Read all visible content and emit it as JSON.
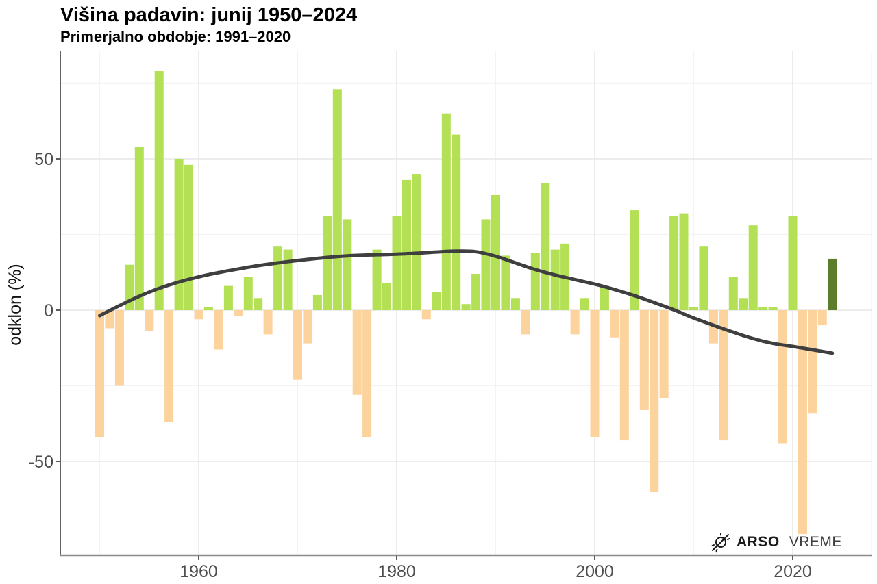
{
  "chart_data": {
    "type": "bar",
    "title": "Višina padavin: junij 1950–2024",
    "subtitle": "Primerjalno obdobje: 1991–2020",
    "xlabel": "",
    "ylabel": "odklon (%)",
    "ylim": [
      -80,
      85
    ],
    "yticks": [
      50,
      0,
      -50
    ],
    "yminor": [
      75,
      25,
      -25,
      -75
    ],
    "xticks": [
      1960,
      1980,
      2000,
      2020
    ],
    "xminor": [
      1950,
      1970,
      1990,
      2010
    ],
    "grid": true,
    "legend": "none",
    "highlight_year": 2024,
    "years": [
      1950,
      1951,
      1952,
      1953,
      1954,
      1955,
      1956,
      1957,
      1958,
      1959,
      1960,
      1961,
      1962,
      1963,
      1964,
      1965,
      1966,
      1967,
      1968,
      1969,
      1970,
      1971,
      1972,
      1973,
      1974,
      1975,
      1976,
      1977,
      1978,
      1979,
      1980,
      1981,
      1982,
      1983,
      1984,
      1985,
      1986,
      1987,
      1988,
      1989,
      1990,
      1991,
      1992,
      1993,
      1994,
      1995,
      1996,
      1997,
      1998,
      1999,
      2000,
      2001,
      2002,
      2003,
      2004,
      2005,
      2006,
      2007,
      2008,
      2009,
      2010,
      2011,
      2012,
      2013,
      2014,
      2015,
      2016,
      2017,
      2018,
      2019,
      2020,
      2021,
      2022,
      2023,
      2024
    ],
    "values": [
      -42,
      -6,
      -25,
      15,
      54,
      -7,
      79,
      -37,
      50,
      48,
      -3,
      1,
      -13,
      8,
      -2,
      11,
      4,
      -8,
      21,
      20,
      -23,
      -11,
      5,
      31,
      73,
      30,
      -28,
      -42,
      20,
      9,
      31,
      43,
      45,
      -3,
      6,
      65,
      58,
      2,
      12,
      30,
      38,
      18,
      4,
      -8,
      19,
      42,
      20,
      22,
      -8,
      4,
      -42,
      8,
      -9,
      -43,
      33,
      -33,
      -60,
      -29,
      31,
      32,
      1,
      21,
      -11,
      -43,
      11,
      4,
      28,
      1,
      1,
      -44,
      31,
      -74,
      -34,
      -5,
      17
    ],
    "trend": {
      "name": "smoothed-trend",
      "x": [
        1950,
        1952,
        1954,
        1956,
        1958,
        1960,
        1962,
        1964,
        1966,
        1968,
        1970,
        1972,
        1974,
        1976,
        1978,
        1980,
        1982,
        1984,
        1986,
        1988,
        1990,
        1992,
        1994,
        1996,
        1998,
        2000,
        2002,
        2004,
        2006,
        2008,
        2010,
        2012,
        2014,
        2016,
        2018,
        2020,
        2022,
        2024
      ],
      "values": [
        -1.8,
        1.5,
        4.6,
        7.2,
        9.3,
        11,
        12.4,
        13.6,
        14.7,
        15.6,
        16.4,
        17.1,
        17.7,
        18.1,
        18.3,
        18.5,
        18.8,
        19.2,
        19.5,
        19.3,
        17.8,
        15.6,
        13.4,
        11.6,
        10.1,
        8.6,
        6.8,
        4.8,
        2.5,
        0.1,
        -2.6,
        -5,
        -7.3,
        -9.4,
        -11,
        -12,
        -13.1,
        -14.2
      ]
    },
    "colors": {
      "positive": "#b3e055",
      "negative": "#fcd39d",
      "highlight": "#5b7d2c",
      "trend": "#3f3f3f",
      "grid_major": "#e7e7e7",
      "grid_minor": "#f3f3f3",
      "axis_text": "#4d4d4d",
      "axis_line_x": "#8c8c8c",
      "axis_line_y": "#3c3c3c"
    }
  },
  "watermark": {
    "brand_bold": "ARSO",
    "brand_regular": "VREME",
    "icon": "sun-crossed-icon"
  }
}
